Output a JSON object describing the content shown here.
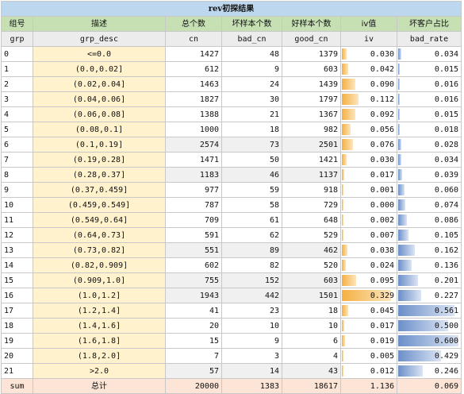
{
  "title": "rev初探结果",
  "headers_cn": [
    "组号",
    "描述",
    "总个数",
    "坏样本个数",
    "好样本个数",
    "iv值",
    "坏客户占比"
  ],
  "headers_en": [
    "grp",
    "grp_desc",
    "cn",
    "bad_cn",
    "good_cn",
    "iv",
    "bad_rate"
  ],
  "rows": [
    {
      "grp": "0",
      "desc": "<=0.0",
      "cn": "1427",
      "bad": "48",
      "good": "1379",
      "iv": "0.030",
      "br": "0.034",
      "shade": false
    },
    {
      "grp": "1",
      "desc": "(0.0,0.02]",
      "cn": "612",
      "bad": "9",
      "good": "603",
      "iv": "0.042",
      "br": "0.015",
      "shade": false
    },
    {
      "grp": "2",
      "desc": "(0.02,0.04]",
      "cn": "1463",
      "bad": "24",
      "good": "1439",
      "iv": "0.090",
      "br": "0.016",
      "shade": false
    },
    {
      "grp": "3",
      "desc": "(0.04,0.06]",
      "cn": "1827",
      "bad": "30",
      "good": "1797",
      "iv": "0.112",
      "br": "0.016",
      "shade": false
    },
    {
      "grp": "4",
      "desc": "(0.06,0.08]",
      "cn": "1388",
      "bad": "21",
      "good": "1367",
      "iv": "0.092",
      "br": "0.015",
      "shade": false
    },
    {
      "grp": "5",
      "desc": "(0.08,0.1]",
      "cn": "1000",
      "bad": "18",
      "good": "982",
      "iv": "0.056",
      "br": "0.018",
      "shade": false
    },
    {
      "grp": "6",
      "desc": "(0.1,0.19]",
      "cn": "2574",
      "bad": "73",
      "good": "2501",
      "iv": "0.076",
      "br": "0.028",
      "shade": true
    },
    {
      "grp": "7",
      "desc": "(0.19,0.28]",
      "cn": "1471",
      "bad": "50",
      "good": "1421",
      "iv": "0.030",
      "br": "0.034",
      "shade": false
    },
    {
      "grp": "8",
      "desc": "(0.28,0.37]",
      "cn": "1183",
      "bad": "46",
      "good": "1137",
      "iv": "0.017",
      "br": "0.039",
      "shade": true
    },
    {
      "grp": "9",
      "desc": "(0.37,0.459]",
      "cn": "977",
      "bad": "59",
      "good": "918",
      "iv": "0.001",
      "br": "0.060",
      "shade": false
    },
    {
      "grp": "10",
      "desc": "(0.459,0.549]",
      "cn": "787",
      "bad": "58",
      "good": "729",
      "iv": "0.000",
      "br": "0.074",
      "shade": false
    },
    {
      "grp": "11",
      "desc": "(0.549,0.64]",
      "cn": "709",
      "bad": "61",
      "good": "648",
      "iv": "0.002",
      "br": "0.086",
      "shade": false
    },
    {
      "grp": "12",
      "desc": "(0.64,0.73]",
      "cn": "591",
      "bad": "62",
      "good": "529",
      "iv": "0.007",
      "br": "0.105",
      "shade": false
    },
    {
      "grp": "13",
      "desc": "(0.73,0.82]",
      "cn": "551",
      "bad": "89",
      "good": "462",
      "iv": "0.038",
      "br": "0.162",
      "shade": true
    },
    {
      "grp": "14",
      "desc": "(0.82,0.909]",
      "cn": "602",
      "bad": "82",
      "good": "520",
      "iv": "0.024",
      "br": "0.136",
      "shade": false
    },
    {
      "grp": "15",
      "desc": "(0.909,1.0]",
      "cn": "755",
      "bad": "152",
      "good": "603",
      "iv": "0.095",
      "br": "0.201",
      "shade": true
    },
    {
      "grp": "16",
      "desc": "(1.0,1.2]",
      "cn": "1943",
      "bad": "442",
      "good": "1501",
      "iv": "0.329",
      "br": "0.227",
      "shade": true
    },
    {
      "grp": "17",
      "desc": "(1.2,1.4]",
      "cn": "41",
      "bad": "23",
      "good": "18",
      "iv": "0.045",
      "br": "0.561",
      "shade": false
    },
    {
      "grp": "18",
      "desc": "(1.4,1.6]",
      "cn": "20",
      "bad": "10",
      "good": "10",
      "iv": "0.017",
      "br": "0.500",
      "shade": false
    },
    {
      "grp": "19",
      "desc": "(1.6,1.8]",
      "cn": "15",
      "bad": "9",
      "good": "6",
      "iv": "0.019",
      "br": "0.600",
      "shade": false
    },
    {
      "grp": "20",
      "desc": "(1.8,2.0]",
      "cn": "7",
      "bad": "3",
      "good": "4",
      "iv": "0.005",
      "br": "0.429",
      "shade": false
    },
    {
      "grp": "21",
      "desc": ">2.0",
      "cn": "57",
      "bad": "14",
      "good": "43",
      "iv": "0.012",
      "br": "0.246",
      "shade": true
    }
  ],
  "sum": {
    "grp": "sum",
    "desc": "总计",
    "cn": "20000",
    "bad": "1383",
    "good": "18617",
    "iv": "1.136",
    "br": "0.069"
  },
  "colors": {
    "iv_bar": "#f4b042",
    "bad_rate_bar": "#6b8fc9",
    "desc_fill": "#fff2cc",
    "header_fill": "#c6e0b4",
    "title_fill": "#bdd7ee",
    "sum_fill": "#fce4d6"
  }
}
